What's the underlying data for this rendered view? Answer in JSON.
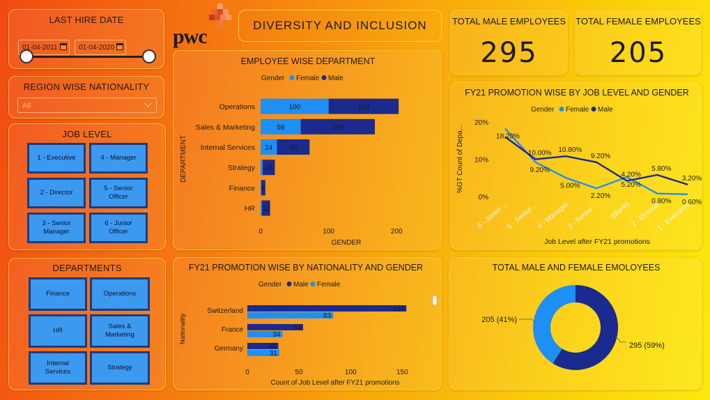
{
  "header": {
    "title": "DIVERSITY AND INCLUSION",
    "logo_text": "pwc"
  },
  "last_hire_date": {
    "title": "LAST HIRE DATE",
    "start": "01-04-2011",
    "end": "01-04-2020"
  },
  "region_nationality": {
    "title": "REGION WISE NATIONALITY",
    "selected": "All"
  },
  "job_level": {
    "title": "JOB LEVEL",
    "items": [
      "1 - Executive",
      "4 - Manager",
      "2 - Director",
      "5 - Senior Officer",
      "3 - Senior Manager",
      "6 - Junior Officer"
    ]
  },
  "departments": {
    "title": "DEPARTMENTS",
    "items": [
      "Finance",
      "Operations",
      "HR",
      "Sales & Marketing",
      "Internal Services",
      "Strategy"
    ]
  },
  "kpis": {
    "male_title": "TOTAL MALE EMPLOYEES",
    "male_value": "295",
    "female_title": "TOTAL FEMALE EMPLOYEES",
    "female_value": "205"
  },
  "colors": {
    "female": "#1e8ff5",
    "male": "#1a2a8f"
  },
  "chart_data": [
    {
      "type": "bar",
      "title": "EMPLOYEE WISE DEPARTMENT",
      "legend_title": "Gender",
      "legend_placement": "top",
      "ylabel": "DEPARTMENT",
      "xlabel": "GENDER",
      "categories": [
        "Operations",
        "Sales & Marketing",
        "Internal Services",
        "Strategy",
        "Finance",
        "HR"
      ],
      "series": [
        {
          "name": "Female",
          "values": [
            100,
            59,
            24,
            3,
            1,
            2
          ]
        },
        {
          "name": "Male",
          "values": [
            103,
            109,
            48,
            18,
            6,
            12
          ]
        }
      ],
      "data_labels": [
        [
          "100",
          "103"
        ],
        [
          "59",
          "109"
        ],
        [
          "24",
          "48"
        ],
        [
          "",
          "18"
        ],
        [
          "",
          "6"
        ],
        [
          "",
          "12"
        ]
      ],
      "xticks": [
        "0",
        "100",
        "200"
      ],
      "xlim": [
        0,
        210
      ]
    },
    {
      "type": "line",
      "title": "FY21 PROMOTION WISE BY JOB LEVEL AND GENDER",
      "legend_title": "Gender",
      "legend_placement": "top",
      "ylabel": "%GT Count of Depa...",
      "xlabel": "Job Level after FY21 promotions",
      "categories": [
        "6 - Junior ...",
        "5 - Senior ...",
        "4 - Manager",
        "3 - Senior ...",
        "(Blank)",
        "2 - Director",
        "1 - Executive"
      ],
      "yticks": [
        "0%",
        "10%",
        "20%"
      ],
      "ylim": [
        0,
        20
      ],
      "series": [
        {
          "name": "Female",
          "values": [
            18.2,
            9.2,
            5.0,
            2.2,
            5.2,
            0.8,
            0.6
          ],
          "labels": [
            "18.20%",
            "9.20%",
            "5.00%",
            "2.20%",
            "5.20%",
            "0.80%",
            "0.60%"
          ]
        },
        {
          "name": "Male",
          "values": [
            16.0,
            10.0,
            10.8,
            9.2,
            4.2,
            5.8,
            3.2
          ],
          "labels": [
            "",
            "10.00%",
            "10.80%",
            "9.20%",
            "4.20%",
            "5.80%",
            "3.20%"
          ]
        }
      ]
    },
    {
      "type": "bar",
      "title": "FY21 PROMOTION WISE BY NATIONALITY AND GENDER",
      "legend_title": "Gender",
      "legend_placement": "top",
      "ylabel": "Nationality",
      "xlabel": "Count of Job Level after FY21 promotions",
      "categories": [
        "Switzerland",
        "France",
        "Germany"
      ],
      "series": [
        {
          "name": "Male",
          "values": [
            154,
            54,
            30
          ]
        },
        {
          "name": "Female",
          "values": [
            83,
            34,
            31
          ]
        }
      ],
      "xticks": [
        "0",
        "50",
        "100",
        "150"
      ],
      "xlim": [
        0,
        170
      ]
    },
    {
      "type": "pie",
      "title": "TOTAL MALE AND FEMALE EMOLOYEES",
      "slices": [
        {
          "name": "Female",
          "value": 205,
          "label": "205 (41%)"
        },
        {
          "name": "Male",
          "value": 295,
          "label": "295 (59%)"
        }
      ]
    }
  ]
}
